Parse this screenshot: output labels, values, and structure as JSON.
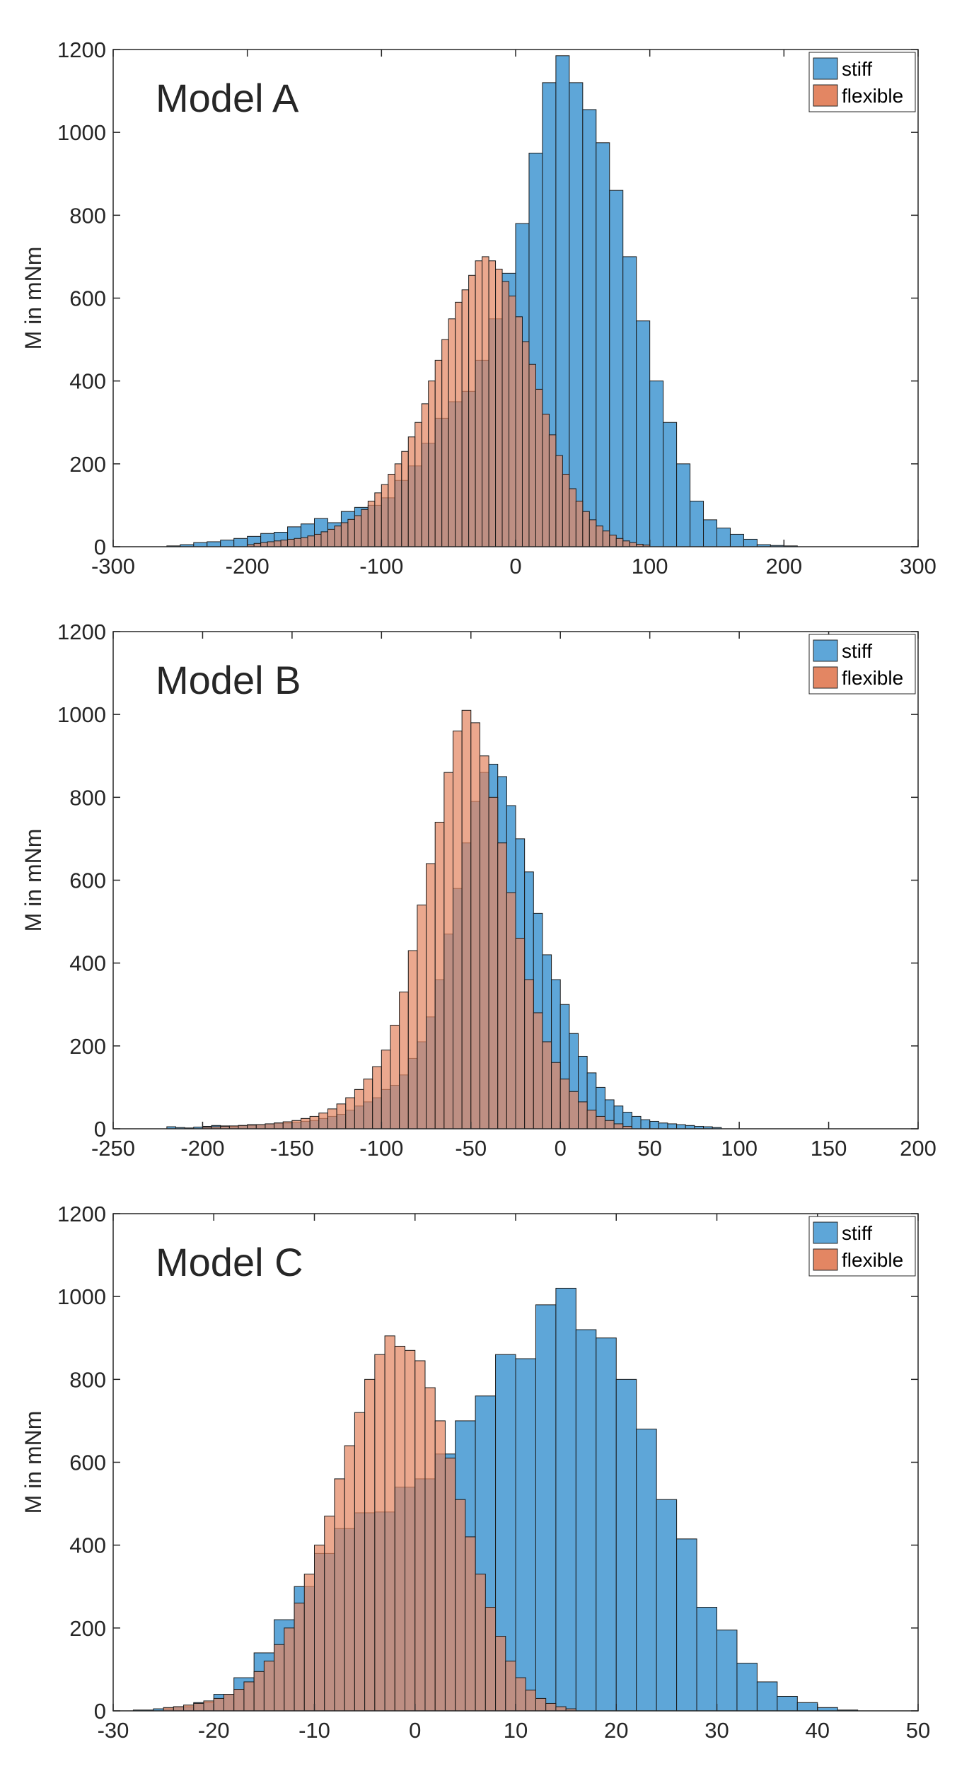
{
  "colors": {
    "stiff": "#5ea6d8",
    "flexible": "#e38663",
    "overlap": "#a06b5e"
  },
  "chart_data": [
    {
      "type": "histogram",
      "title": "Model A",
      "xlabel": "",
      "ylabel": "M in mNm",
      "xlim": [
        -300,
        300
      ],
      "ylim": [
        0,
        1200
      ],
      "xticks": [
        "-300",
        "-200",
        "-100",
        "0",
        "100",
        "200",
        "300"
      ],
      "yticks": [
        "0",
        "200",
        "400",
        "600",
        "800",
        "1000",
        "1200"
      ],
      "legend": [
        "stiff",
        "flexible"
      ],
      "legend_location": "top-right",
      "series": [
        {
          "name": "stiff",
          "bin_start": -260,
          "bin_width": 10,
          "values": [
            2,
            5,
            10,
            12,
            16,
            20,
            25,
            32,
            35,
            48,
            55,
            68,
            58,
            85,
            95,
            100,
            118,
            160,
            195,
            250,
            310,
            350,
            375,
            450,
            550,
            660,
            780,
            950,
            1120,
            1185,
            1120,
            1055,
            975,
            860,
            700,
            545,
            400,
            300,
            200,
            110,
            65,
            45,
            30,
            18,
            5,
            3,
            2
          ],
          "values_fine_step_note": ""
        },
        {
          "name": "flexible",
          "bin_start": -200,
          "bin_width": 5,
          "values": [
            5,
            8,
            10,
            12,
            14,
            16,
            18,
            20,
            22,
            26,
            30,
            36,
            42,
            50,
            58,
            66,
            75,
            90,
            110,
            130,
            150,
            175,
            200,
            230,
            265,
            300,
            345,
            400,
            450,
            500,
            550,
            590,
            620,
            655,
            690,
            700,
            690,
            670,
            640,
            605,
            555,
            495,
            440,
            380,
            320,
            270,
            220,
            175,
            140,
            110,
            85,
            65,
            50,
            38,
            28,
            20,
            14,
            10,
            6,
            4
          ]
        }
      ]
    },
    {
      "type": "histogram",
      "title": "Model B",
      "xlabel": "",
      "ylabel": "M in mNm",
      "xlim": [
        -250,
        200
      ],
      "ylim": [
        0,
        1200
      ],
      "xticks": [
        "-250",
        "-200",
        "-150",
        "-100",
        "-50",
        "0",
        "50",
        "100",
        "150",
        "200"
      ],
      "yticks": [
        "0",
        "200",
        "400",
        "600",
        "800",
        "1000",
        "1200"
      ],
      "legend": [
        "stiff",
        "flexible"
      ],
      "legend_location": "top-right",
      "series": [
        {
          "name": "stiff",
          "bin_start": -220,
          "bin_width": 5,
          "values": [
            5,
            3,
            2,
            4,
            6,
            8,
            7,
            5,
            8,
            10,
            10,
            12,
            14,
            14,
            15,
            18,
            20,
            25,
            30,
            35,
            45,
            55,
            65,
            75,
            95,
            105,
            130,
            170,
            210,
            270,
            360,
            470,
            580,
            690,
            790,
            860,
            880,
            850,
            780,
            700,
            620,
            520,
            420,
            360,
            300,
            230,
            175,
            135,
            100,
            70,
            55,
            40,
            30,
            22,
            18,
            14,
            12,
            10,
            8,
            6,
            5,
            3
          ]
        },
        {
          "name": "flexible",
          "bin_start": -200,
          "bin_width": 5,
          "values": [
            4,
            5,
            6,
            7,
            8,
            9,
            10,
            12,
            14,
            17,
            20,
            25,
            30,
            38,
            48,
            60,
            75,
            95,
            120,
            150,
            190,
            250,
            330,
            430,
            540,
            640,
            740,
            860,
            960,
            1010,
            980,
            900,
            800,
            690,
            570,
            460,
            360,
            280,
            210,
            160,
            120,
            90,
            65,
            45,
            30,
            20,
            12,
            6
          ]
        }
      ]
    },
    {
      "type": "histogram",
      "title": "Model C",
      "xlabel": "",
      "ylabel": "M in mNm",
      "xlim": [
        -30,
        50
      ],
      "ylim": [
        0,
        1200
      ],
      "xticks": [
        "-30",
        "-20",
        "-10",
        "0",
        "10",
        "20",
        "30",
        "40",
        "50"
      ],
      "yticks": [
        "0",
        "200",
        "400",
        "600",
        "800",
        "1000",
        "1200"
      ],
      "legend": [
        "stiff",
        "flexible"
      ],
      "legend_location": "top-right",
      "series": [
        {
          "name": "stiff",
          "bin_start": -28,
          "bin_width": 2,
          "values": [
            2,
            5,
            10,
            20,
            40,
            80,
            140,
            220,
            300,
            380,
            440,
            478,
            480,
            540,
            560,
            620,
            700,
            760,
            860,
            850,
            980,
            1020,
            920,
            900,
            800,
            680,
            510,
            415,
            250,
            195,
            115,
            70,
            35,
            20,
            8,
            2
          ]
        },
        {
          "name": "flexible",
          "bin_start": -25,
          "bin_width": 1,
          "values": [
            8,
            10,
            14,
            18,
            24,
            30,
            40,
            52,
            70,
            95,
            120,
            160,
            200,
            260,
            330,
            400,
            470,
            560,
            640,
            720,
            800,
            860,
            905,
            880,
            870,
            845,
            780,
            700,
            610,
            510,
            420,
            330,
            250,
            180,
            120,
            80,
            50,
            30,
            18,
            10,
            5
          ]
        }
      ]
    }
  ]
}
